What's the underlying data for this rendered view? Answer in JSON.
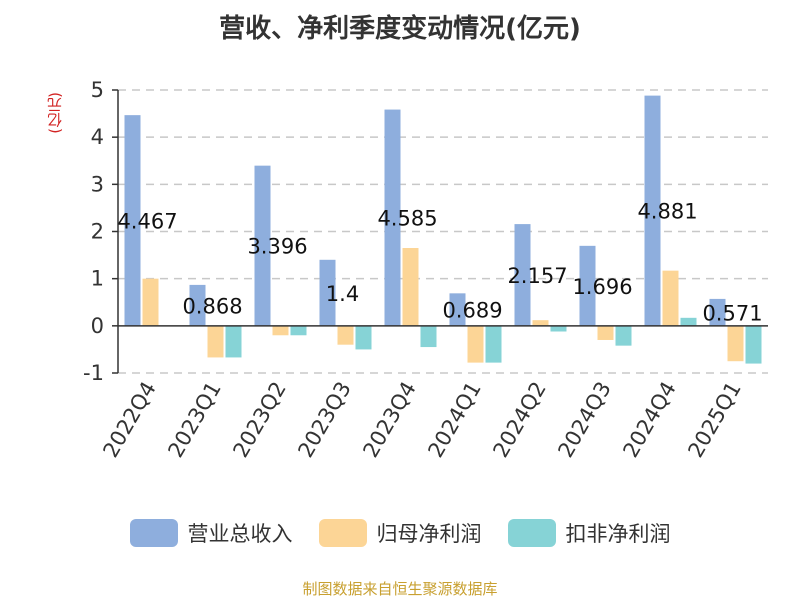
{
  "chart_data": {
    "type": "bar",
    "title": "营收、净利季度变动情况(亿元)",
    "ylabel": "(亿元)",
    "ylim": [
      -1,
      5
    ],
    "yticks": [
      -1,
      0,
      1,
      2,
      3,
      4,
      5
    ],
    "grid": true,
    "legend_position": "bottom",
    "categories": [
      "2022Q4",
      "2023Q1",
      "2023Q2",
      "2023Q3",
      "2023Q4",
      "2024Q1",
      "2024Q2",
      "2024Q3",
      "2024Q4",
      "2025Q1"
    ],
    "series": [
      {
        "name": "营业总收入",
        "color": "#8eaedd",
        "values": [
          4.467,
          0.868,
          3.396,
          1.4,
          4.585,
          0.689,
          2.157,
          1.696,
          4.881,
          0.571
        ],
        "data_labels": [
          "4.467",
          "0.868",
          "3.396",
          "1.4",
          "4.585",
          "0.689",
          "2.157",
          "1.696",
          "4.881",
          "0.571"
        ]
      },
      {
        "name": "归母净利润",
        "color": "#fcd596",
        "values": [
          1.0,
          -0.67,
          -0.2,
          -0.4,
          1.65,
          -0.78,
          0.12,
          -0.3,
          1.17,
          -0.75
        ]
      },
      {
        "name": "扣非净利润",
        "color": "#86d3d6",
        "values": [
          0.0,
          -0.67,
          -0.2,
          -0.5,
          -0.45,
          -0.78,
          -0.12,
          -0.42,
          0.17,
          -0.8
        ]
      }
    ],
    "source": "制图数据来自恒生聚源数据库"
  }
}
